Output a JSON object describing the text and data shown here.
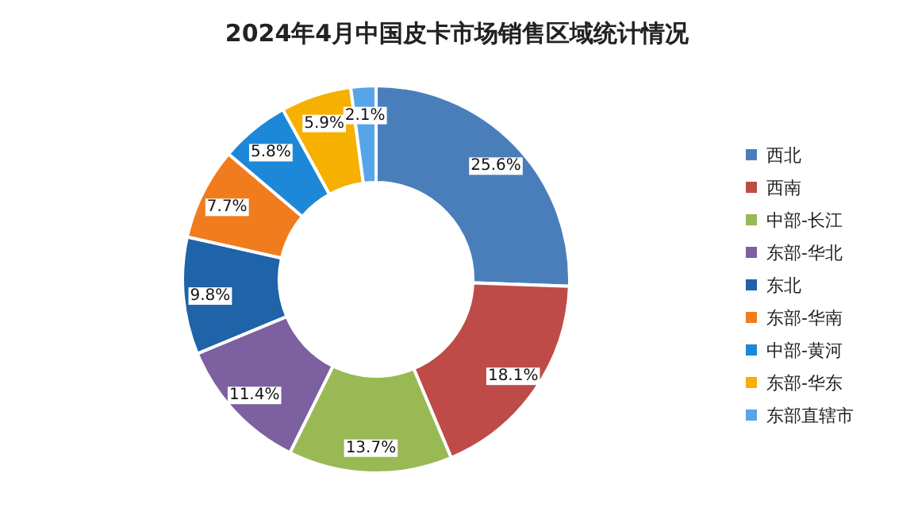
{
  "chart_data": {
    "type": "donut",
    "title": "2024年4月中国皮卡市场销售区域统计情况",
    "categories": [
      "西北",
      "西南",
      "中部-长江",
      "东部-华北",
      "东北",
      "东部-华南",
      "中部-黄河",
      "东部-华东",
      "东部直辖市"
    ],
    "values": [
      25.6,
      18.1,
      13.7,
      11.4,
      9.8,
      7.7,
      5.8,
      5.9,
      2.1
    ],
    "value_labels": [
      "25.6%",
      "18.1%",
      "13.7%",
      "11.4%",
      "9.8%",
      "7.7%",
      "5.8%",
      "5.9%",
      "2.1%"
    ],
    "colors": [
      "#4a7ebb",
      "#be4b48",
      "#98b954",
      "#7d60a0",
      "#1f63a8",
      "#f07c1e",
      "#1e88d8",
      "#f5b000",
      "#56a5e8"
    ],
    "legend": "right"
  }
}
